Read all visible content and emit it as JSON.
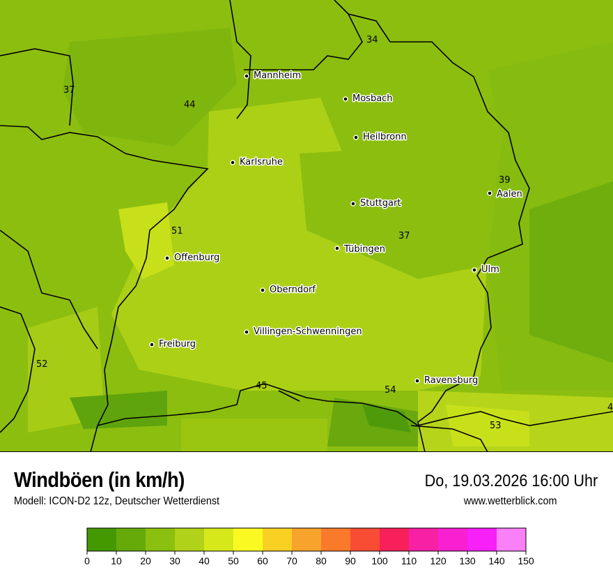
{
  "header": {
    "title": "Windböen (in km/h)",
    "subtitle": "Modell: ICON-D2 12z, Deutscher Wetterdienst",
    "datetime": "Do, 19.03.2026 16:00 Uhr",
    "website": "www.wetterblick.com"
  },
  "map": {
    "cities": [
      {
        "name": "Mannheim"
      },
      {
        "name": "Mosbach"
      },
      {
        "name": "Heilbronn"
      },
      {
        "name": "Karlsruhe"
      },
      {
        "name": "Aalen"
      },
      {
        "name": "Stuttgart"
      },
      {
        "name": "Tübingen"
      },
      {
        "name": "Offenburg"
      },
      {
        "name": "Ulm"
      },
      {
        "name": "Oberndorf"
      },
      {
        "name": "Villingen-Schwenningen"
      },
      {
        "name": "Freiburg"
      },
      {
        "name": "Ravensburg"
      }
    ],
    "values": [
      "34",
      "37",
      "44",
      "39",
      "51",
      "37",
      "52",
      "45",
      "54",
      "53",
      "4"
    ]
  },
  "legend": {
    "ticks": [
      "0",
      "10",
      "20",
      "30",
      "40",
      "50",
      "60",
      "70",
      "80",
      "90",
      "100",
      "110",
      "120",
      "130",
      "140",
      "150"
    ],
    "colors": [
      "#449900",
      "#66aa0a",
      "#8bbf10",
      "#b0d218",
      "#d6e81a",
      "#fafa22",
      "#fad022",
      "#f8a42c",
      "#f87a2a",
      "#f84c34",
      "#f8205a",
      "#f820a4",
      "#f820d0",
      "#f820f8",
      "#fa80f8"
    ]
  }
}
